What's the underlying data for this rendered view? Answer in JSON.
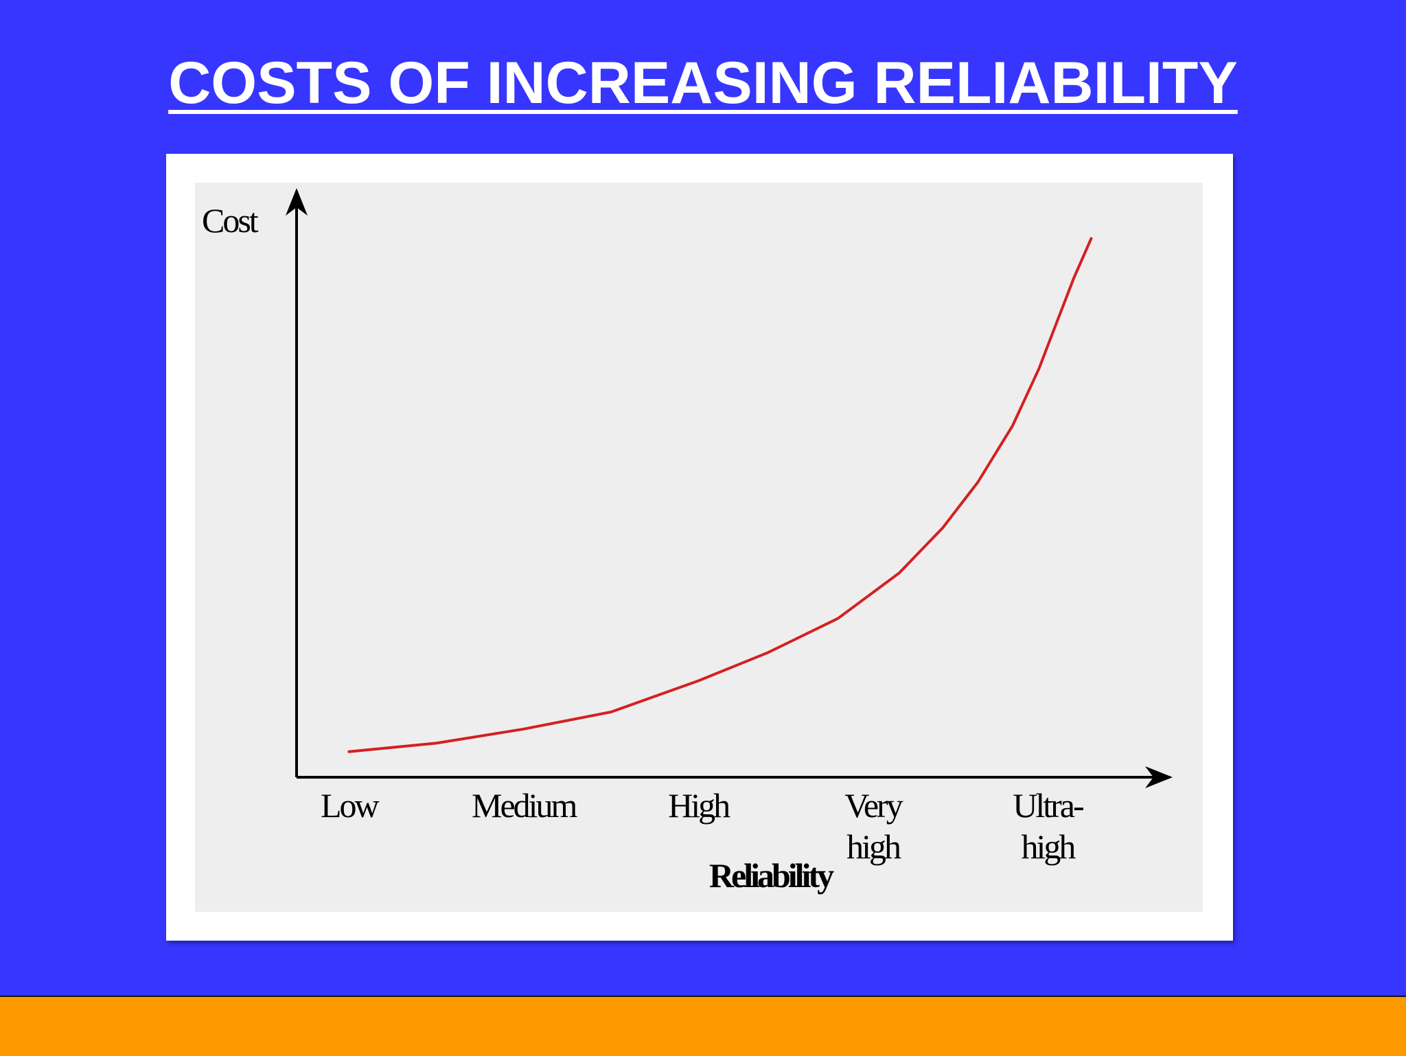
{
  "slide": {
    "title": "COSTS OF INCREASING RELIABILITY",
    "background_color": "#3636ff",
    "title_color": "#ffffff",
    "footer_bar_color": "#ff9900"
  },
  "chart_data": {
    "type": "line",
    "title": "",
    "xlabel": "Reliability",
    "ylabel": "Cost",
    "categories": [
      [
        "Low"
      ],
      [
        "Medium"
      ],
      [
        "High"
      ],
      [
        "Very",
        "high"
      ],
      [
        "Ultra-",
        "high"
      ]
    ],
    "series": [
      {
        "color": "#d42020",
        "points": [
          {
            "x": 0.0,
            "y": 4.5
          },
          {
            "x": 0.5,
            "y": 6
          },
          {
            "x": 1.0,
            "y": 8.5
          },
          {
            "x": 1.5,
            "y": 11.5
          },
          {
            "x": 2.0,
            "y": 17
          },
          {
            "x": 2.4,
            "y": 22
          },
          {
            "x": 2.8,
            "y": 28
          },
          {
            "x": 3.15,
            "y": 36
          },
          {
            "x": 3.4,
            "y": 44
          },
          {
            "x": 3.6,
            "y": 52
          },
          {
            "x": 3.8,
            "y": 62
          },
          {
            "x": 3.95,
            "y": 72
          },
          {
            "x": 4.05,
            "y": 80
          },
          {
            "x": 4.15,
            "y": 88
          },
          {
            "x": 4.25,
            "y": 95
          }
        ]
      }
    ],
    "xlim": [
      -0.3,
      4.7
    ],
    "ylim": [
      0,
      100
    ],
    "axis_color": "#000000",
    "grid": false,
    "legend": "none",
    "panel_color": "#efeeef"
  }
}
